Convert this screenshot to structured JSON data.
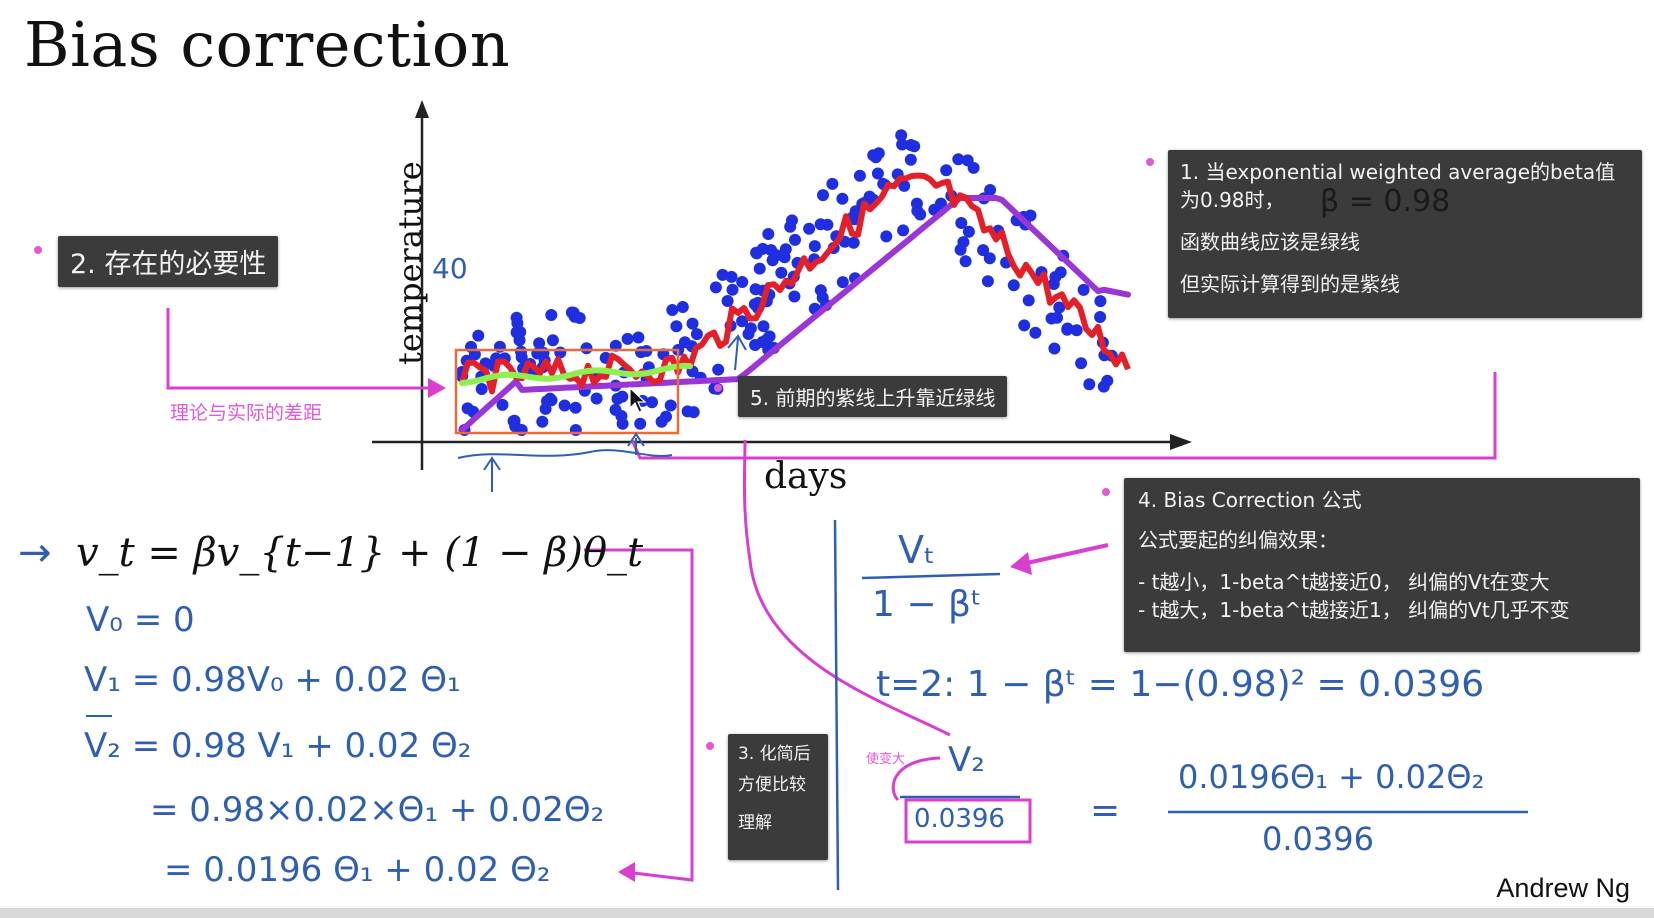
{
  "slide": {
    "title": "Bias correction",
    "author": "Andrew Ng"
  },
  "chart": {
    "ylabel": "temperature",
    "xlabel": "days",
    "annotation_40": "40"
  },
  "notes": {
    "note1": {
      "line1": "1. 当exponential weighted average的beta值",
      "line2": "为0.98时，",
      "line3": "函数曲线应该是绿线",
      "line4": "但实际计算得到的是紫线"
    },
    "note2": {
      "text": "2. 存在的必要性"
    },
    "note3": {
      "line1": "3. 化简后",
      "line2": "方便比较",
      "line3": "理解"
    },
    "note4": {
      "line1": "4. Bias Correction 公式",
      "line2": "公式要起的纠偏效果：",
      "line3": "- t越小，1-beta^t越接近0，  纠偏的Vt在变大",
      "line4": "- t越大，1-beta^t越接近1，  纠偏的Vt几乎不变"
    },
    "note5": {
      "text": "5. 前期的紫线上升靠近绿线"
    }
  },
  "labels": {
    "gap_label": "理论与实际的差距",
    "bigger_label": "使变大"
  },
  "formula": {
    "main": "v_t = βv_{t−1} + (1 − β)θ_t",
    "arrow": "→"
  },
  "handwriting": {
    "h1": "V₀ = 0",
    "h2": "V₁ = 0.98V₀ + 0.02 Θ₁",
    "h3": "V₂ = 0.98 V₁ + 0.02 Θ₂",
    "h4": "= 0.98×0.02×Θ₁ + 0.02Θ₂",
    "h5": "= 0.0196 Θ₁ + 0.02 Θ₂",
    "r1_num": "Vₜ",
    "r1_den": "1 − βᵗ",
    "r2": "t=2:   1 − βᵗ  =  1−(0.98)²  =  0.0396",
    "r3_num": "V₂",
    "r3_den": "0.0396",
    "r3_eq": "=",
    "r3_rnum": "0.0196Θ₁ + 0.02Θ₂",
    "r3_rden": "0.0396",
    "beta_note": "β = 0.98"
  },
  "colors": {
    "points": "#1f2fe0",
    "red_line": "#e3202a",
    "purple_line": "#9a36d6",
    "green_line": "#8df050",
    "pink_annot": "#d83fcf",
    "orange_box": "#ea6a3a",
    "ink_blue": "#2f5fb0"
  }
}
